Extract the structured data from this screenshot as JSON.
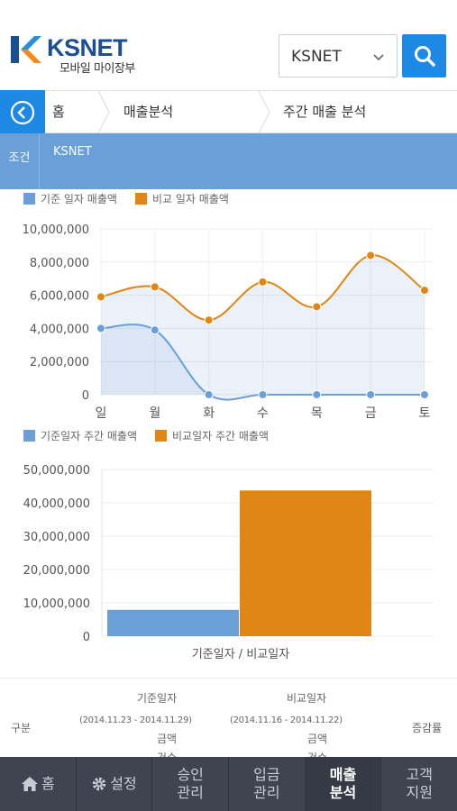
{
  "header": {
    "logo_text": "KSNET",
    "logo_sub": "모바일 마이장부",
    "select_value": "KSNET"
  },
  "breadcrumb": {
    "items": [
      "홈",
      "매출분석",
      "주간 매출 분석"
    ]
  },
  "condition": {
    "label": "조건",
    "value": "KSNET"
  },
  "colors": {
    "primary": "#1e88e5",
    "base_series": "#6b9fd8",
    "compare_series": "#e08614"
  },
  "chart_data": [
    {
      "type": "line",
      "categories": [
        "일",
        "월",
        "화",
        "수",
        "목",
        "금",
        "토"
      ],
      "series": [
        {
          "name": "기준 일자 매출액",
          "values": [
            4000000,
            3900000,
            0,
            0,
            0,
            0,
            0
          ]
        },
        {
          "name": "비교 일자 매출액",
          "values": [
            5900000,
            6500000,
            4500000,
            6800000,
            5300000,
            8400000,
            6300000
          ]
        }
      ],
      "ylim": [
        0,
        10000000
      ],
      "yticks": [
        "10,000,000",
        "8,000,000",
        "6,000,000",
        "4,000,000",
        "2,000,000",
        "0"
      ],
      "grid": true,
      "legend": "top-left"
    },
    {
      "type": "bar",
      "categories": [
        "기준일자 / 비교일자"
      ],
      "series": [
        {
          "name": "기준일자 주간 매출액",
          "values": [
            7900000
          ]
        },
        {
          "name": "비교일자 주간 매출액",
          "values": [
            43700000
          ]
        }
      ],
      "ylim": [
        0,
        50000000
      ],
      "yticks": [
        "50,000,000",
        "40,000,000",
        "30,000,000",
        "20,000,000",
        "10,000,000",
        "0"
      ],
      "grid": true,
      "legend": "top-left"
    }
  ],
  "table": {
    "col_label": "구분",
    "base_head": "기준일자",
    "base_range": "(2014.11.23 - 2014.11.29)",
    "compare_head": "비교일자",
    "compare_range": "(2014.11.16 - 2014.11.22)",
    "amount": "금액",
    "count": "건수",
    "rate": "증감률"
  },
  "nav": {
    "home": "홈",
    "settings": "설정",
    "approval_1": "승인",
    "approval_2": "관리",
    "deposit_1": "입금",
    "deposit_2": "관리",
    "sales_1": "매출",
    "sales_2": "분석",
    "support_1": "고객",
    "support_2": "지원"
  }
}
